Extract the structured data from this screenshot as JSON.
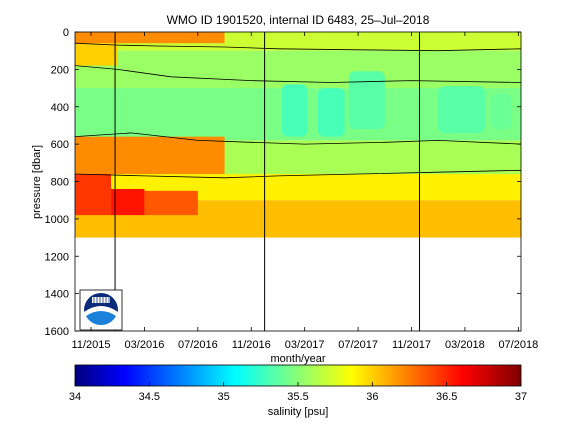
{
  "chart_data": {
    "type": "heatmap",
    "title": "WMO ID 1901520, internal ID 6483, 25–Jul–2018",
    "xlabel": "month/year",
    "ylabel": "pressure [dbar]",
    "x_ticks": [
      "11/2015",
      "03/2016",
      "07/2016",
      "11/2016",
      "03/2017",
      "07/2017",
      "11/2017",
      "03/2018",
      "07/2018"
    ],
    "x_tick_months": [
      0,
      4,
      8,
      12,
      16,
      20,
      24,
      28,
      32
    ],
    "x_range_months": [
      -1.2,
      32.2
    ],
    "y_ticks": [
      "0",
      "200",
      "400",
      "600",
      "800",
      "1000",
      "1200",
      "1400",
      "1600"
    ],
    "y_tick_values": [
      0,
      200,
      400,
      600,
      800,
      1000,
      1200,
      1400,
      1600
    ],
    "ylim": [
      0,
      1600
    ],
    "y_reversed": true,
    "colorbar": {
      "label": "salinity [psu]",
      "ticks": [
        "34",
        "34.5",
        "35",
        "35.5",
        "36",
        "36.5",
        "37"
      ],
      "tick_values": [
        34,
        34.5,
        35,
        35.5,
        36,
        36.5,
        37
      ],
      "range": [
        34,
        37
      ]
    },
    "vertical_markers_months": [
      1.8,
      13.0,
      24.6
    ],
    "layers_salinity": [
      {
        "top": 0,
        "bottom": 100,
        "value": 35.7
      },
      {
        "top": 100,
        "bottom": 300,
        "value": 35.55
      },
      {
        "top": 300,
        "bottom": 580,
        "value": 35.45
      },
      {
        "top": 580,
        "bottom": 760,
        "value": 35.6
      },
      {
        "top": 760,
        "bottom": 900,
        "value": 35.9
      },
      {
        "top": 900,
        "bottom": 1100,
        "value": 36.05
      }
    ],
    "early_period_salinity": [
      {
        "months": [
          -1.2,
          10
        ],
        "top": 0,
        "bottom": 60,
        "value": 36.2
      },
      {
        "months": [
          -1.2,
          2
        ],
        "top": 60,
        "bottom": 180,
        "value": 36.0
      },
      {
        "months": [
          -1.2,
          10
        ],
        "top": 560,
        "bottom": 760,
        "value": 36.2
      },
      {
        "months": [
          -1.2,
          1.5
        ],
        "top": 760,
        "bottom": 980,
        "value": 36.45
      },
      {
        "months": [
          1.5,
          4
        ],
        "top": 840,
        "bottom": 980,
        "value": 36.55
      },
      {
        "months": [
          4,
          8
        ],
        "top": 850,
        "bottom": 980,
        "value": 36.35
      }
    ],
    "fresh_core_salinity": [
      {
        "months": [
          14.3,
          16.2
        ],
        "top": 280,
        "bottom": 560,
        "value": 35.3
      },
      {
        "months": [
          17,
          19
        ],
        "top": 300,
        "bottom": 560,
        "value": 35.3
      },
      {
        "months": [
          19.3,
          22
        ],
        "top": 210,
        "bottom": 520,
        "value": 35.35
      },
      {
        "months": [
          26,
          29.5
        ],
        "top": 290,
        "bottom": 540,
        "value": 35.35
      },
      {
        "months": [
          30,
          31.5
        ],
        "top": 330,
        "bottom": 520,
        "value": 35.4
      }
    ]
  }
}
